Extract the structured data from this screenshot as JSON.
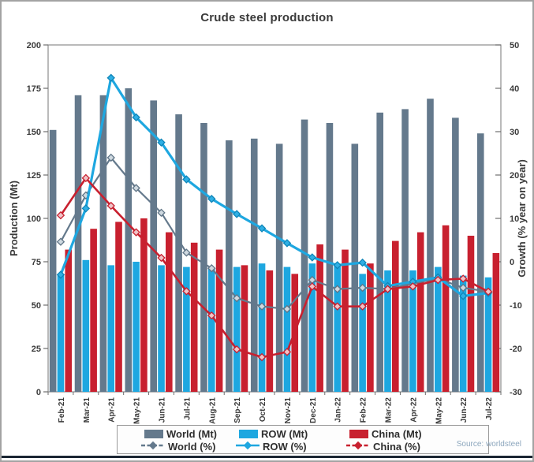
{
  "source": "Source: worldsteel",
  "chart_data": {
    "type": "combo-bar-line",
    "title": "Crude steel production",
    "categories": [
      "Feb-21",
      "Mar-21",
      "Apr-21",
      "May-21",
      "Jun-21",
      "Jul-21",
      "Aug-21",
      "Sep-21",
      "Oct-21",
      "Nov-21",
      "Dec-21",
      "Jan-22",
      "Feb-22",
      "Mar-22",
      "Apr-22",
      "May-22",
      "Jun-22",
      "Jul-22"
    ],
    "left_axis": {
      "label": "Production (Mt)",
      "range": [
        0,
        200
      ],
      "ticks": [
        0,
        25,
        50,
        75,
        100,
        125,
        150,
        175,
        200
      ]
    },
    "right_axis": {
      "label": "Growth (% year on year)",
      "range": [
        -30,
        50
      ],
      "ticks": [
        -30,
        -20,
        -10,
        0,
        10,
        20,
        30,
        40,
        50
      ]
    },
    "grid": false,
    "legend_position": "bottom",
    "colors": {
      "world": "#64798c",
      "row": "#1ea7e0",
      "china": "#c8202f",
      "axis_text": "#3a3a3a",
      "footer_bar": "#1b2633",
      "source_text": "#8ca6bd"
    },
    "bar_series": [
      {
        "name": "World (Mt)",
        "axis": "left",
        "color_key": "world",
        "values": [
          151,
          171,
          171,
          175,
          168,
          160,
          155,
          145,
          146,
          143,
          157,
          155,
          143,
          161,
          163,
          169,
          158,
          149
        ]
      },
      {
        "name": "ROW (Mt)",
        "axis": "left",
        "color_key": "row",
        "values": [
          67,
          76,
          73,
          75,
          73,
          72,
          71,
          72,
          74,
          72,
          74,
          73,
          68,
          70,
          70,
          72,
          67,
          66
        ]
      },
      {
        "name": "China (Mt)",
        "axis": "left",
        "color_key": "china",
        "values": [
          82,
          94,
          98,
          100,
          92,
          86,
          82,
          73,
          70,
          68,
          85,
          82,
          74,
          87,
          92,
          96,
          90,
          80
        ]
      }
    ],
    "line_series": [
      {
        "name": "World (%)",
        "axis": "right",
        "color_key": "world",
        "values": [
          4.6,
          15.3,
          24,
          17,
          11.3,
          2.1,
          -1.5,
          -8.4,
          -10.3,
          -10.9,
          -4.2,
          -6.3,
          -6,
          -6.3,
          -5,
          -3.9,
          -6,
          -6.9
        ]
      },
      {
        "name": "ROW (%)",
        "axis": "right",
        "color_key": "row",
        "values": [
          -3,
          12.3,
          42.4,
          33.3,
          27.5,
          19,
          14.5,
          11,
          7.7,
          4.3,
          1,
          -0.8,
          -0.2,
          -5.6,
          -4.6,
          -3.6,
          -7.9,
          -7.2
        ]
      },
      {
        "name": "China (%)",
        "axis": "right",
        "color_key": "china",
        "values": [
          10.7,
          19.3,
          12.9,
          6.8,
          0.9,
          -6.8,
          -12.4,
          -20.2,
          -22,
          -20.8,
          -5.7,
          -10.3,
          -10.3,
          -6.3,
          -5.7,
          -4.2,
          -3.9,
          -6.9
        ]
      }
    ]
  },
  "legend": {
    "items": [
      {
        "label": "World (Mt)",
        "swatch": "bar",
        "color_key": "world"
      },
      {
        "label": "ROW (Mt)",
        "swatch": "bar",
        "color_key": "row"
      },
      {
        "label": "China (Mt)",
        "swatch": "bar",
        "color_key": "china"
      },
      {
        "label": "World (%)",
        "swatch": "line",
        "color_key": "world"
      },
      {
        "label": "ROW (%)",
        "swatch": "line",
        "color_key": "row"
      },
      {
        "label": "China (%)",
        "swatch": "line",
        "color_key": "china"
      }
    ]
  }
}
